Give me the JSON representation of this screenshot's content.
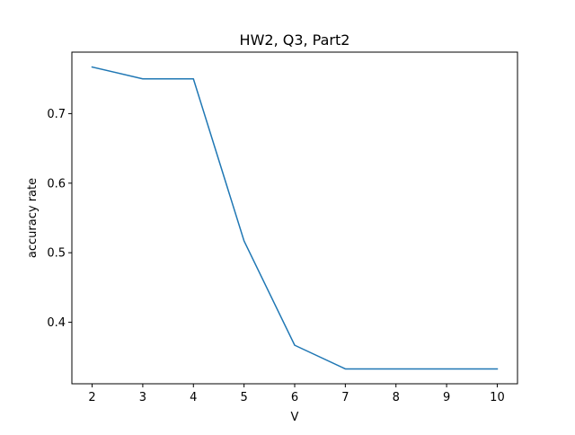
{
  "chart_data": {
    "type": "line",
    "title": "HW2, Q3, Part2",
    "xlabel": "V",
    "ylabel": "accuracy rate",
    "x": [
      2,
      3,
      4,
      5,
      6,
      7,
      8,
      9,
      10
    ],
    "series": [
      {
        "values": [
          0.767,
          0.75,
          0.75,
          0.517,
          0.367,
          0.333,
          0.333,
          0.333,
          0.333
        ],
        "color": "#1f77b4"
      }
    ],
    "xlim": [
      1.6,
      10.4
    ],
    "ylim": [
      0.3116,
      0.7884
    ],
    "x_ticks": [
      "2",
      "3",
      "4",
      "5",
      "6",
      "7",
      "8",
      "9",
      "10"
    ],
    "y_ticks": [
      "0.4",
      "0.5",
      "0.6",
      "0.7"
    ],
    "grid": false,
    "legend": "none"
  }
}
